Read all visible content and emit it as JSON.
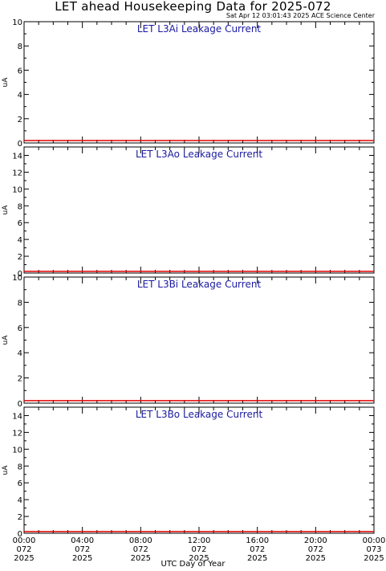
{
  "figure": {
    "title": "LET ahead Housekeeping Data for 2025-072",
    "timestamp": "Sat Apr 12 03:01:43 2025 ACE Science Center",
    "xlabel": "UTC Day of Year",
    "xticks": [
      {
        "time": "00:00",
        "doy": "072",
        "year": "2025"
      },
      {
        "time": "04:00",
        "doy": "072",
        "year": "2025"
      },
      {
        "time": "08:00",
        "doy": "072",
        "year": "2025"
      },
      {
        "time": "12:00",
        "doy": "072",
        "year": "2025"
      },
      {
        "time": "16:00",
        "doy": "072",
        "year": "2025"
      },
      {
        "time": "20:00",
        "doy": "072",
        "year": "2025"
      },
      {
        "time": "00:00",
        "doy": "073",
        "year": "2025"
      }
    ],
    "colors": {
      "axes": "#000000",
      "panel_title": "#1a1aa0",
      "series": "#e00000"
    }
  },
  "chart_data": [
    {
      "type": "line",
      "title": "LET L3Ai Leakage Current",
      "ylabel": "uA",
      "xlim_hours": [
        0,
        24
      ],
      "ylim": [
        0,
        10
      ],
      "yticks": [
        0,
        2,
        4,
        6,
        8,
        10
      ],
      "x_hours": [
        0,
        24
      ],
      "y": [
        0.2,
        0.2
      ]
    },
    {
      "type": "line",
      "title": "LET L3Ao Leakage Current",
      "ylabel": "uA",
      "xlim_hours": [
        0,
        24
      ],
      "ylim": [
        0,
        15
      ],
      "yticks": [
        0,
        2,
        4,
        6,
        8,
        10,
        12,
        14
      ],
      "x_hours": [
        0,
        24
      ],
      "y": [
        0.2,
        0.2
      ]
    },
    {
      "type": "line",
      "title": "LET L3Bi Leakage Current",
      "ylabel": "uA",
      "xlim_hours": [
        0,
        24
      ],
      "ylim": [
        0,
        10
      ],
      "yticks": [
        0,
        2,
        4,
        6,
        8,
        10
      ],
      "x_hours": [
        0,
        24
      ],
      "y": [
        0.2,
        0.2
      ]
    },
    {
      "type": "line",
      "title": "LET L3Bo Leakage Current",
      "ylabel": "uA",
      "xlim_hours": [
        0,
        24
      ],
      "ylim": [
        0,
        15
      ],
      "yticks": [
        0,
        2,
        4,
        6,
        8,
        10,
        12,
        14
      ],
      "x_hours": [
        0,
        24
      ],
      "y": [
        0.2,
        0.2
      ]
    }
  ]
}
